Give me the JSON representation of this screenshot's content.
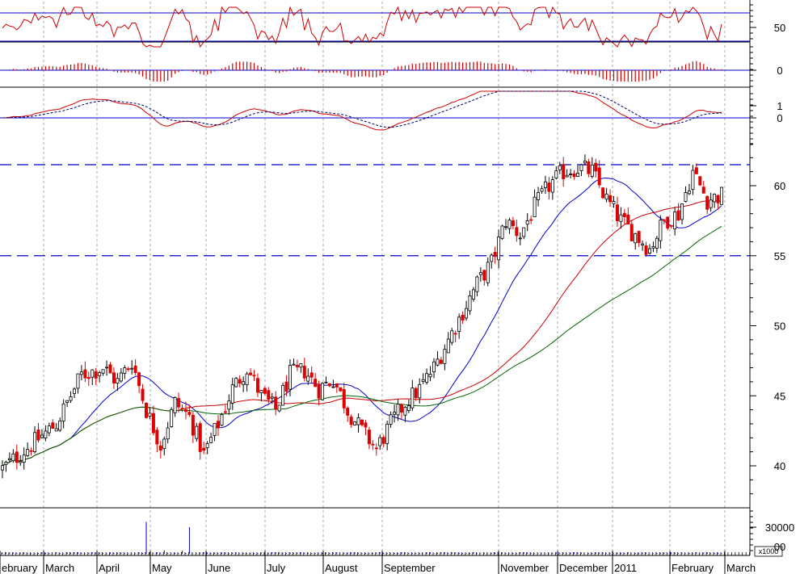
{
  "chart_data": {
    "type": "candlestick",
    "title": "",
    "months": [
      "ebruary",
      "March",
      "April",
      "May",
      "June",
      "July",
      "August",
      "September",
      "November",
      "December",
      "2011",
      "February",
      "March"
    ],
    "price_axis": {
      "ticks": [
        40,
        45,
        50,
        55,
        60
      ],
      "tick_labels": [
        "40",
        "45",
        "50",
        "55",
        "60"
      ],
      "ylim": [
        38,
        63
      ],
      "support_level": 55,
      "resistance_level": 61.5
    },
    "price_anchors": [
      [
        0,
        39.8
      ],
      [
        8,
        41.5
      ],
      [
        15,
        43.0
      ],
      [
        22,
        46.5
      ],
      [
        28,
        47.0
      ],
      [
        32,
        46.0
      ],
      [
        36,
        47.5
      ],
      [
        40,
        44.0
      ],
      [
        44,
        41.5
      ],
      [
        48,
        44.5
      ],
      [
        52,
        43.5
      ],
      [
        56,
        40.8
      ],
      [
        60,
        43.0
      ],
      [
        64,
        45.5
      ],
      [
        68,
        47.0
      ],
      [
        72,
        45.0
      ],
      [
        76,
        44.0
      ],
      [
        80,
        46.5
      ],
      [
        84,
        46.8
      ],
      [
        88,
        45.5
      ],
      [
        92,
        46.2
      ],
      [
        96,
        44.0
      ],
      [
        100,
        42.5
      ],
      [
        104,
        41.2
      ],
      [
        108,
        43.0
      ],
      [
        112,
        44.5
      ],
      [
        116,
        45.5
      ],
      [
        120,
        47.0
      ],
      [
        124,
        49.0
      ],
      [
        128,
        51.0
      ],
      [
        132,
        53.0
      ],
      [
        136,
        54.5
      ],
      [
        140,
        57.5
      ],
      [
        144,
        56.5
      ],
      [
        148,
        58.5
      ],
      [
        152,
        60.0
      ],
      [
        156,
        61.0
      ],
      [
        160,
        61.3
      ],
      [
        164,
        61.0
      ],
      [
        168,
        59.0
      ],
      [
        172,
        57.5
      ],
      [
        176,
        56.5
      ],
      [
        180,
        55.5
      ],
      [
        184,
        57.5
      ],
      [
        188,
        58.0
      ],
      [
        192,
        61.0
      ],
      [
        196,
        59.0
      ],
      [
        200,
        59.3
      ]
    ],
    "moving_averages": [
      {
        "name": "short MA",
        "color": "#0000cc",
        "period": 20
      },
      {
        "name": "medium MA",
        "color": "#cc0000",
        "period": 50
      },
      {
        "name": "long MA",
        "color": "#006600",
        "period": 80
      }
    ],
    "rsi": {
      "reference_levels": [
        70,
        30
      ],
      "tick_labels": [
        "50"
      ],
      "ylim": [
        20,
        80
      ]
    },
    "macd_histogram": {
      "tick_labels": [
        "0"
      ]
    },
    "macd": {
      "tick_labels": [
        "1",
        "0"
      ],
      "signal_style": "dashed"
    },
    "volume": {
      "tick_labels": [
        "30000",
        "00"
      ],
      "multiplier_label": "x1000",
      "spikes": [
        [
          40,
          36000
        ],
        [
          52,
          30000
        ],
        [
          45,
          4000
        ],
        [
          50,
          3500
        ]
      ]
    }
  }
}
